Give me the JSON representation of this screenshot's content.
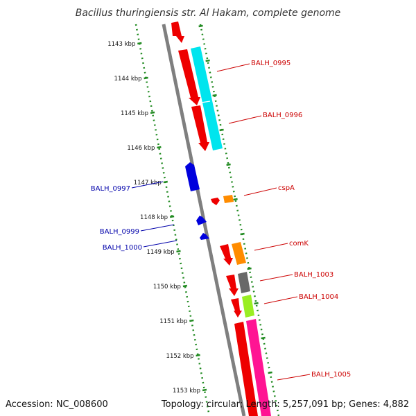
{
  "title": "Bacillus thuringiensis str. Al Hakam, complete genome",
  "footer": {
    "accession": "Accession: NC_008600",
    "summary": "Topology: circular; Length: 5,257,091 bp; Genes: 4,882"
  },
  "kbp_labels": [
    "1143 kbp",
    "1144 kbp",
    "1145 kbp",
    "1146 kbp",
    "1147 kbp",
    "1148 kbp",
    "1149 kbp",
    "1150 kbp",
    "1151 kbp",
    "1152 kbp",
    "1153 kbp"
  ],
  "gene_labels_forward": [
    "BALH_0995",
    "BALH_0996",
    "cspA",
    "comK",
    "BALH_1003",
    "BALH_1004",
    "BALH_1005"
  ],
  "gene_labels_reverse": [
    "BALH_0997",
    "BALH_0999",
    "BALH_1000"
  ],
  "colors": {
    "cds_forward": "#ee0000",
    "cds_reverse": "#0000dd",
    "label_forward": "#cc0000",
    "label_reverse": "#0000aa",
    "backbone": "#7f7f7f",
    "cyan_feature": "#00e5ee",
    "orange_feature": "#ff8c00",
    "gray_feature": "#696969",
    "green_feature": "#99ee22",
    "pink_feature": "#ff1493",
    "scale_ticks": "#228b22"
  }
}
